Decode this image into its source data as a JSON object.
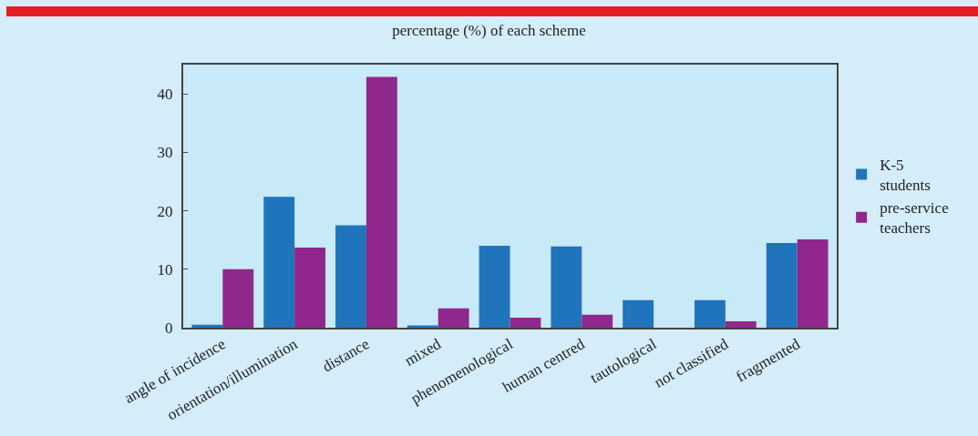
{
  "chart_data": {
    "type": "bar",
    "title": "percentage (%) of each scheme",
    "categories": [
      "angle of incidence",
      "orientation/illumination",
      "distance",
      "mixed",
      "phenomenological",
      "human centred",
      "tautological",
      "not classified",
      "fragmented"
    ],
    "series": [
      {
        "name": "K-5 students",
        "color": "#1f74bc",
        "values": [
          0.5,
          22.4,
          17.5,
          0.4,
          14.0,
          13.9,
          4.7,
          4.7,
          14.5
        ]
      },
      {
        "name": "pre-service teachers",
        "color": "#90278c",
        "values": [
          10.0,
          13.7,
          42.9,
          3.3,
          1.7,
          2.2,
          0,
          1.1,
          15.1
        ]
      }
    ],
    "ylim": [
      0,
      45
    ],
    "yticks": [
      0,
      10,
      20,
      30,
      40
    ],
    "grid": false,
    "legend": "right"
  }
}
